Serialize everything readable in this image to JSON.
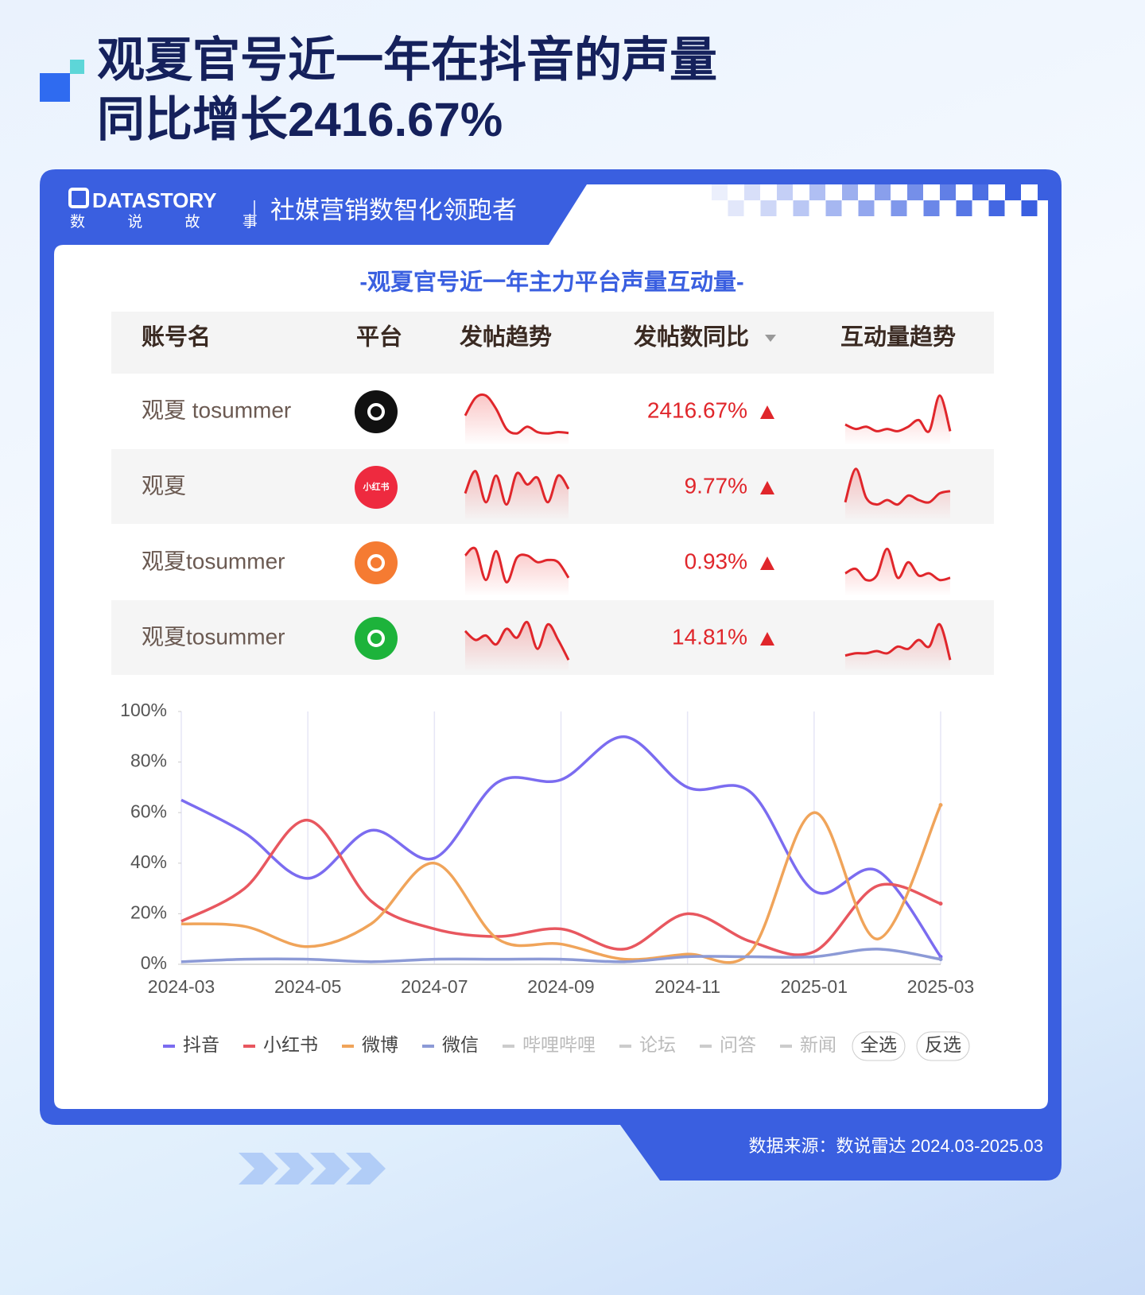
{
  "header": {
    "title_lines": [
      "观夏官号近一年在抖音的声量",
      "同比增长2416.67%"
    ]
  },
  "brand": {
    "logo": "DATASTORY",
    "logo_sub": "数 说 故 事",
    "slogan": "社媒营销数智化领跑者"
  },
  "table": {
    "title": "-观夏官号近一年主力平台声量互动量-",
    "columns": [
      "账号名",
      "平台",
      "发帖趋势",
      "发帖数同比",
      "互动量趋势"
    ],
    "rows": [
      {
        "account": "观夏 tosummer",
        "platform_color": "#111111",
        "yoy": "2416.67%",
        "post_trend": [
          45,
          85,
          90,
          60,
          15,
          5,
          20,
          8,
          5,
          8,
          6
        ],
        "engagement_trend": [
          25,
          15,
          20,
          10,
          15,
          10,
          20,
          35,
          10,
          90,
          10
        ]
      },
      {
        "account": "观夏",
        "platform_color": "#ee2a3f",
        "icon_text": "小红书",
        "yoy": "9.77%",
        "post_trend": [
          40,
          90,
          20,
          80,
          15,
          85,
          60,
          75,
          20,
          80,
          50
        ],
        "engagement_trend": [
          20,
          95,
          30,
          15,
          25,
          15,
          35,
          25,
          20,
          40,
          45
        ]
      },
      {
        "account": "观夏tosummer",
        "platform_color": "#f57b32",
        "yoy": "0.93%",
        "post_trend": [
          70,
          85,
          15,
          80,
          10,
          65,
          70,
          55,
          60,
          55,
          20
        ],
        "engagement_trend": [
          30,
          40,
          15,
          25,
          85,
          20,
          55,
          25,
          30,
          15,
          20
        ]
      },
      {
        "account": "观夏tosummer",
        "platform_color": "#1db33b",
        "yoy": "14.81%",
        "post_trend": [
          70,
          50,
          60,
          40,
          75,
          55,
          90,
          30,
          85,
          50,
          5
        ],
        "engagement_trend": [
          15,
          20,
          20,
          25,
          20,
          35,
          30,
          50,
          35,
          85,
          5
        ]
      }
    ]
  },
  "chart_data": {
    "type": "line",
    "grid": "x",
    "categories": [
      "2024-03",
      null,
      "2024-05",
      null,
      "2024-07",
      null,
      "2024-09",
      null,
      "2024-11",
      null,
      "2025-01",
      null,
      "2025-03"
    ],
    "ylim": [
      0,
      100
    ],
    "yticks": [
      {
        "value": 0,
        "label": "0%"
      },
      {
        "value": 20,
        "label": "20%"
      },
      {
        "value": 40,
        "label": "40%"
      },
      {
        "value": 60,
        "label": "60%"
      },
      {
        "value": 80,
        "label": "80%"
      },
      {
        "value": 100,
        "label": "100%"
      }
    ],
    "series": [
      {
        "name": "抖音",
        "color": "#7b6cf0",
        "values": [
          65,
          52,
          34,
          53,
          42,
          72,
          73,
          90,
          70,
          68,
          29,
          37,
          3
        ]
      },
      {
        "name": "小红书",
        "color": "#e8575f",
        "values": [
          17,
          30,
          57,
          25,
          14,
          11,
          14,
          6,
          20,
          9,
          5,
          31,
          24
        ]
      },
      {
        "name": "微博",
        "color": "#f0a45a",
        "values": [
          16,
          15,
          7,
          16,
          40,
          10,
          8,
          2,
          4,
          5,
          60,
          10,
          63
        ]
      },
      {
        "name": "微信",
        "color": "#8c9ad6",
        "values": [
          1,
          2,
          2,
          1,
          2,
          2,
          2,
          1,
          3,
          3,
          3,
          6,
          2
        ]
      }
    ],
    "inactive_legend": [
      "哔哩哔哩",
      "论坛",
      "问答",
      "新闻"
    ],
    "buttons": [
      "全选",
      "反选"
    ]
  },
  "footer": {
    "source": "数据来源：数说雷达 2024.03-2025.03"
  }
}
